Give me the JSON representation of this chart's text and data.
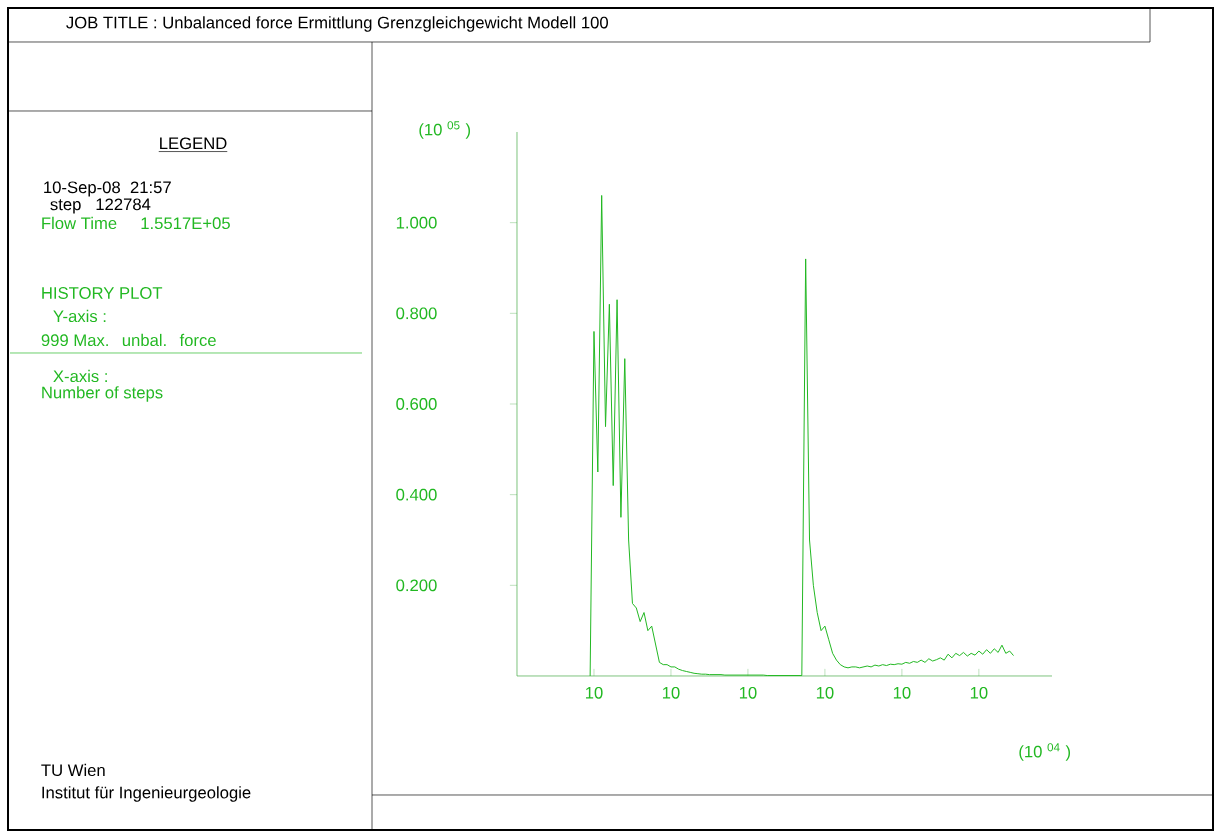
{
  "chart_data": {
    "type": "line",
    "title": "JOB TITLE : Unbalanced force Ermittlung Grenzgleichgewicht Modell 100",
    "xlabel": "(10 $^{04}$ )",
    "ylabel": "(10 $^{05}$ )",
    "annotations": [
      "LEGEND",
      "10-Sep-08  21:57",
      "step   122784",
      "Flow Time     1.5517E+05",
      "HISTORY PLOT",
      "Y-axis :",
      "999 Max.  unbal.  force",
      "X-axis :",
      "Number of steps",
      "TU Wien",
      "Institut für Ingenieurgeologie"
    ],
    "categories": [
      null,
      null,
      null,
      null,
      null,
      null,
      null,
      null,
      null,
      null,
      null,
      null,
      null,
      null,
      null,
      null,
      null,
      null,
      null,
      null,
      "10",
      null,
      null,
      null,
      null,
      null,
      null,
      null,
      null,
      null,
      null,
      null,
      null,
      null,
      null,
      null,
      null,
      null,
      null,
      null,
      "10",
      null,
      null,
      null,
      null,
      null,
      null,
      null,
      null,
      null,
      null,
      null,
      null,
      null,
      null,
      null,
      null,
      null,
      null,
      null,
      "10",
      null,
      null,
      null,
      null,
      null,
      null,
      null,
      null,
      null,
      null,
      null,
      null,
      null,
      null,
      null,
      null,
      null,
      null,
      null,
      "10",
      null,
      null,
      null,
      null,
      null,
      null,
      null,
      null,
      null,
      null,
      null,
      null,
      null,
      null,
      null,
      null,
      null,
      null,
      null,
      "10",
      null,
      null,
      null,
      null,
      null,
      null,
      null,
      null,
      null,
      null,
      null,
      null,
      null,
      null,
      null,
      null,
      null,
      null,
      null,
      "10",
      null,
      null,
      null,
      null,
      null,
      null,
      null,
      null,
      null,
      null,
      null,
      null,
      null,
      null,
      null,
      null,
      null,
      null
    ],
    "ylim": [
      0,
      1.2
    ],
    "yticks": [
      {
        "value": 0.2,
        "label": "0.200"
      },
      {
        "value": 0.4,
        "label": "0.400"
      },
      {
        "value": 0.6,
        "label": "0.600"
      },
      {
        "value": 0.8,
        "label": "0.800"
      },
      {
        "value": 1.0,
        "label": "1.000"
      }
    ],
    "grid": false,
    "marker": "none",
    "line_style": "solid",
    "series": [
      {
        "color": "#22b822",
        "values": [
          null,
          null,
          null,
          null,
          null,
          null,
          null,
          null,
          null,
          null,
          null,
          null,
          null,
          null,
          null,
          null,
          null,
          null,
          null,
          0,
          0.76,
          0.45,
          1.06,
          0.55,
          0.82,
          0.42,
          0.83,
          0.35,
          0.7,
          0.3,
          0.16,
          0.15,
          0.12,
          0.14,
          0.1,
          0.11,
          0.07,
          0.03,
          0.025,
          0.025,
          0.02,
          0.02,
          0.015,
          0.012,
          0.01,
          0.008,
          0.006,
          0.005,
          0.004,
          0.004,
          0.003,
          0.003,
          0.003,
          0.003,
          0.002,
          0.002,
          0.002,
          0.002,
          0.002,
          0.002,
          0.002,
          0.002,
          0.002,
          0.002,
          0.002,
          0.001,
          0.001,
          0.001,
          0.001,
          0.001,
          0.001,
          0.001,
          0.001,
          0.001,
          0.001,
          0.92,
          0.3,
          0.2,
          0.14,
          0.1,
          0.11,
          0.08,
          0.05,
          0.035,
          0.025,
          0.02,
          0.018,
          0.02,
          0.02,
          0.018,
          0.02,
          0.022,
          0.02,
          0.024,
          0.022,
          0.025,
          0.023,
          0.026,
          0.025,
          0.027,
          0.026,
          0.03,
          0.028,
          0.032,
          0.03,
          0.035,
          0.03,
          0.038,
          0.033,
          0.036,
          0.04,
          0.035,
          0.048,
          0.04,
          0.05,
          0.045,
          0.052,
          0.044,
          0.05,
          0.046,
          0.055,
          0.048,
          0.058,
          0.05,
          0.06,
          0.052,
          0.068,
          0.05,
          0.055,
          0.045,
          null,
          null,
          null,
          null,
          null,
          null,
          null,
          null,
          null
        ]
      }
    ]
  }
}
